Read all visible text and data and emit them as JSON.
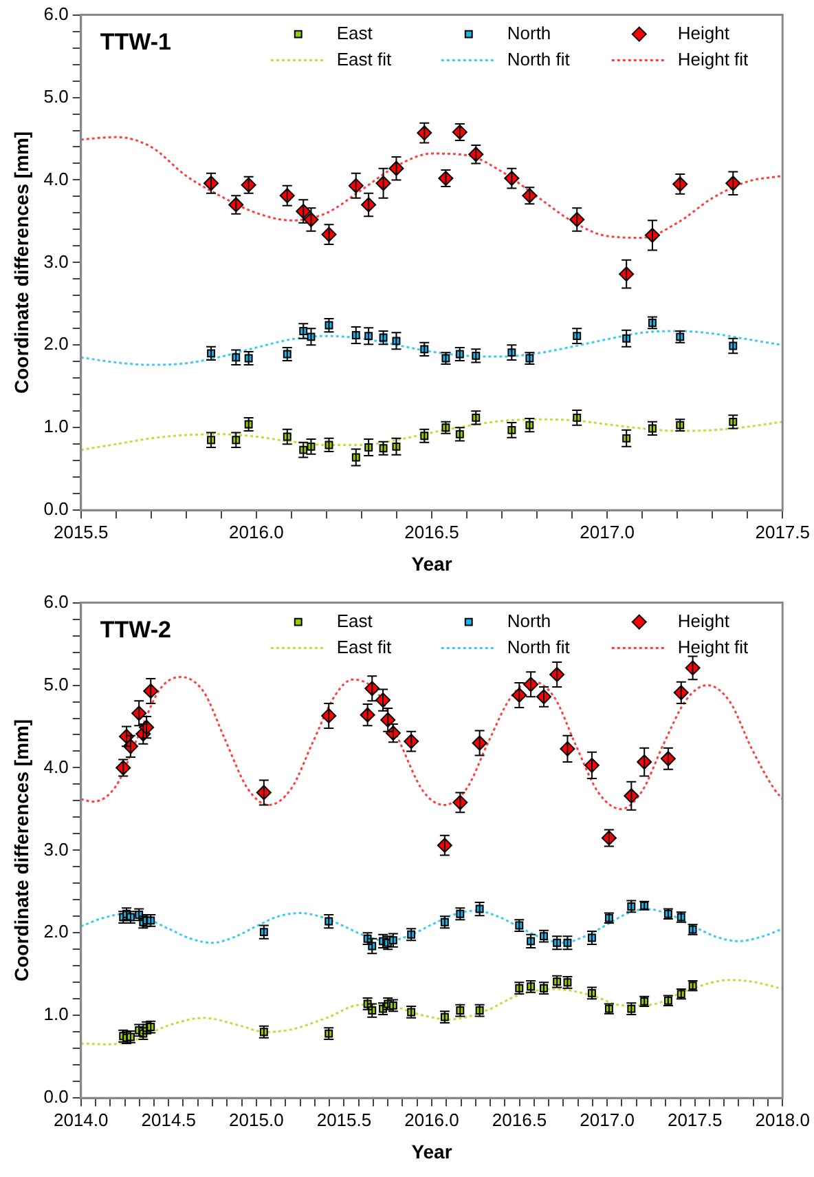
{
  "chart_data": [
    {
      "type": "scatter",
      "title": "TTW-1",
      "xlabel": "Year",
      "ylabel": "Coordinate differences [mm]",
      "grid": false,
      "legend": "top",
      "xlim": [
        2015.5,
        2017.5
      ],
      "xticks": [
        {
          "value": 2015.5,
          "label": "2015.5"
        },
        {
          "value": 2015.6,
          "label": null
        },
        {
          "value": 2015.7,
          "label": null
        },
        {
          "value": 2015.8,
          "label": null
        },
        {
          "value": 2015.9,
          "label": null
        },
        {
          "value": 2016.0,
          "label": "2016.0"
        },
        {
          "value": 2016.1,
          "label": null
        },
        {
          "value": 2016.2,
          "label": null
        },
        {
          "value": 2016.3,
          "label": null
        },
        {
          "value": 2016.4,
          "label": null
        },
        {
          "value": 2016.5,
          "label": "2016.5"
        },
        {
          "value": 2016.6,
          "label": null
        },
        {
          "value": 2016.7,
          "label": null
        },
        {
          "value": 2016.8,
          "label": null
        },
        {
          "value": 2016.9,
          "label": null
        },
        {
          "value": 2017.0,
          "label": "2017.0"
        },
        {
          "value": 2017.1,
          "label": null
        },
        {
          "value": 2017.2,
          "label": null
        },
        {
          "value": 2017.3,
          "label": null
        },
        {
          "value": 2017.4,
          "label": null
        },
        {
          "value": 2017.5,
          "label": "2017.5"
        }
      ],
      "ylim": [
        0,
        6
      ],
      "yticks": [
        {
          "value": 0,
          "label": "0.0"
        },
        {
          "value": 0.2,
          "label": null
        },
        {
          "value": 0.4,
          "label": null
        },
        {
          "value": 0.6,
          "label": null
        },
        {
          "value": 0.8,
          "label": null
        },
        {
          "value": 1,
          "label": "1.0"
        },
        {
          "value": 1.2,
          "label": null
        },
        {
          "value": 1.4,
          "label": null
        },
        {
          "value": 1.6,
          "label": null
        },
        {
          "value": 1.8,
          "label": null
        },
        {
          "value": 2,
          "label": "2.0"
        },
        {
          "value": 2.2,
          "label": null
        },
        {
          "value": 2.4,
          "label": null
        },
        {
          "value": 2.6,
          "label": null
        },
        {
          "value": 2.8,
          "label": null
        },
        {
          "value": 3,
          "label": "3.0"
        },
        {
          "value": 3.2,
          "label": null
        },
        {
          "value": 3.4,
          "label": null
        },
        {
          "value": 3.6,
          "label": null
        },
        {
          "value": 3.8,
          "label": null
        },
        {
          "value": 4,
          "label": "4.0"
        },
        {
          "value": 4.2,
          "label": null
        },
        {
          "value": 4.4,
          "label": null
        },
        {
          "value": 4.6,
          "label": null
        },
        {
          "value": 4.8,
          "label": null
        },
        {
          "value": 5,
          "label": "5.0"
        },
        {
          "value": 5.2,
          "label": null
        },
        {
          "value": 5.4,
          "label": null
        },
        {
          "value": 5.6,
          "label": null
        },
        {
          "value": 5.8,
          "label": null
        },
        {
          "value": 6,
          "label": "6.0"
        }
      ],
      "series": [
        {
          "name": "East",
          "type": "scatter",
          "marker": "square",
          "color": "#99cc00",
          "x": [
            2015.871,
            2015.942,
            2015.978,
            2016.088,
            2016.134,
            2016.156,
            2016.207,
            2016.284,
            2016.32,
            2016.362,
            2016.399,
            2016.479,
            2016.54,
            2016.58,
            2016.626,
            2016.728,
            2016.779,
            2016.914,
            2017.055,
            2017.129,
            2017.208,
            2017.359
          ],
          "values": [
            0.85,
            0.85,
            1.04,
            0.89,
            0.73,
            0.77,
            0.79,
            0.64,
            0.76,
            0.75,
            0.77,
            0.9,
            1.0,
            0.92,
            1.12,
            0.97,
            1.03,
            1.12,
            0.87,
            0.99,
            1.03,
            1.07
          ],
          "errors": [
            0.09,
            0.09,
            0.08,
            0.09,
            0.09,
            0.09,
            0.08,
            0.1,
            0.1,
            0.08,
            0.1,
            0.08,
            0.07,
            0.08,
            0.08,
            0.09,
            0.08,
            0.09,
            0.1,
            0.08,
            0.07,
            0.08
          ]
        },
        {
          "name": "North",
          "type": "scatter",
          "marker": "square",
          "color": "#1ab4e8",
          "x": [
            2015.871,
            2015.942,
            2015.978,
            2016.088,
            2016.134,
            2016.156,
            2016.207,
            2016.284,
            2016.32,
            2016.362,
            2016.399,
            2016.479,
            2016.54,
            2016.58,
            2016.626,
            2016.728,
            2016.779,
            2016.914,
            2017.055,
            2017.129,
            2017.208,
            2017.359
          ],
          "values": [
            1.9,
            1.85,
            1.84,
            1.89,
            2.17,
            2.1,
            2.24,
            2.12,
            2.11,
            2.09,
            2.05,
            1.95,
            1.84,
            1.89,
            1.87,
            1.91,
            1.84,
            2.11,
            2.08,
            2.27,
            2.1,
            1.99
          ],
          "errors": [
            0.08,
            0.09,
            0.08,
            0.08,
            0.09,
            0.1,
            0.08,
            0.1,
            0.1,
            0.08,
            0.1,
            0.08,
            0.07,
            0.08,
            0.08,
            0.09,
            0.07,
            0.09,
            0.1,
            0.07,
            0.07,
            0.09
          ]
        },
        {
          "name": "Height",
          "type": "scatter",
          "marker": "diamond",
          "color": "#ff0000",
          "x": [
            2015.871,
            2015.942,
            2015.978,
            2016.088,
            2016.134,
            2016.156,
            2016.207,
            2016.284,
            2016.32,
            2016.362,
            2016.399,
            2016.479,
            2016.54,
            2016.58,
            2016.626,
            2016.728,
            2016.779,
            2016.914,
            2017.055,
            2017.129,
            2017.208,
            2017.359
          ],
          "values": [
            3.96,
            3.7,
            3.94,
            3.81,
            3.62,
            3.52,
            3.34,
            3.93,
            3.7,
            3.96,
            4.14,
            4.57,
            4.02,
            4.58,
            4.31,
            4.02,
            3.81,
            3.52,
            2.86,
            3.33,
            3.95,
            3.96
          ],
          "errors": [
            0.12,
            0.11,
            0.1,
            0.12,
            0.14,
            0.14,
            0.12,
            0.15,
            0.14,
            0.18,
            0.14,
            0.12,
            0.1,
            0.1,
            0.11,
            0.12,
            0.1,
            0.14,
            0.17,
            0.18,
            0.12,
            0.14
          ]
        },
        {
          "name": "East fit",
          "type": "line",
          "marker": "none",
          "line_style": "dotted",
          "color": "#c4dc3c",
          "x": [
            2015.5,
            2015.6,
            2015.7,
            2015.8,
            2015.9,
            2016.0,
            2016.1,
            2016.2,
            2016.3,
            2016.4,
            2016.5,
            2016.6,
            2016.7,
            2016.8,
            2016.9,
            2017.0,
            2017.1,
            2017.2,
            2017.3,
            2017.4,
            2017.5
          ],
          "values": [
            0.73,
            0.8,
            0.87,
            0.91,
            0.92,
            0.89,
            0.83,
            0.79,
            0.79,
            0.85,
            0.94,
            1.02,
            1.08,
            1.1,
            1.09,
            1.04,
            0.99,
            0.96,
            0.97,
            1.01,
            1.07
          ]
        },
        {
          "name": "North fit",
          "type": "line",
          "marker": "none",
          "line_style": "dotted",
          "color": "#3cccf0",
          "x": [
            2015.5,
            2015.6,
            2015.7,
            2015.8,
            2015.9,
            2016.0,
            2016.1,
            2016.2,
            2016.3,
            2016.4,
            2016.5,
            2016.6,
            2016.7,
            2016.8,
            2016.9,
            2017.0,
            2017.1,
            2017.2,
            2017.3,
            2017.4,
            2017.5
          ],
          "values": [
            1.85,
            1.79,
            1.76,
            1.78,
            1.86,
            1.97,
            2.07,
            2.11,
            2.08,
            2.0,
            1.92,
            1.87,
            1.86,
            1.9,
            1.98,
            2.07,
            2.15,
            2.17,
            2.14,
            2.07,
            2.0
          ]
        },
        {
          "name": "Height fit",
          "type": "line",
          "marker": "none",
          "line_style": "dotted",
          "color": "#ff4040",
          "x": [
            2015.5,
            2015.6,
            2015.7,
            2015.8,
            2015.9,
            2016.0,
            2016.1,
            2016.2,
            2016.3,
            2016.4,
            2016.5,
            2016.6,
            2016.7,
            2016.8,
            2016.9,
            2017.0,
            2017.1,
            2017.2,
            2017.3,
            2017.4,
            2017.5
          ],
          "values": [
            4.49,
            4.52,
            4.4,
            4.05,
            3.8,
            3.6,
            3.51,
            3.6,
            3.88,
            4.17,
            4.32,
            4.3,
            4.1,
            3.8,
            3.5,
            3.32,
            3.3,
            3.48,
            3.78,
            3.98,
            4.05
          ]
        }
      ]
    },
    {
      "type": "scatter",
      "title": "TTW-2",
      "xlabel": "Year",
      "ylabel": "Coordinate differences [mm]",
      "grid": false,
      "legend": "top",
      "xlim": [
        2014.0,
        2018.0
      ],
      "xticks": [
        {
          "value": 2014.0,
          "label": "2014.0"
        },
        {
          "value": 2014.083,
          "label": null
        },
        {
          "value": 2014.167,
          "label": null
        },
        {
          "value": 2014.25,
          "label": null
        },
        {
          "value": 2014.333,
          "label": null
        },
        {
          "value": 2014.417,
          "label": null
        },
        {
          "value": 2014.5,
          "label": "2014.5"
        },
        {
          "value": 2014.583,
          "label": null
        },
        {
          "value": 2014.667,
          "label": null
        },
        {
          "value": 2014.75,
          "label": null
        },
        {
          "value": 2014.833,
          "label": null
        },
        {
          "value": 2014.917,
          "label": null
        },
        {
          "value": 2015.0,
          "label": "2015.0"
        },
        {
          "value": 2015.083,
          "label": null
        },
        {
          "value": 2015.167,
          "label": null
        },
        {
          "value": 2015.25,
          "label": null
        },
        {
          "value": 2015.333,
          "label": null
        },
        {
          "value": 2015.417,
          "label": null
        },
        {
          "value": 2015.5,
          "label": "2015.5"
        },
        {
          "value": 2015.583,
          "label": null
        },
        {
          "value": 2015.667,
          "label": null
        },
        {
          "value": 2015.75,
          "label": null
        },
        {
          "value": 2015.833,
          "label": null
        },
        {
          "value": 2015.917,
          "label": null
        },
        {
          "value": 2016.0,
          "label": "2016.0"
        },
        {
          "value": 2016.083,
          "label": null
        },
        {
          "value": 2016.167,
          "label": null
        },
        {
          "value": 2016.25,
          "label": null
        },
        {
          "value": 2016.333,
          "label": null
        },
        {
          "value": 2016.417,
          "label": null
        },
        {
          "value": 2016.5,
          "label": "2016.5"
        },
        {
          "value": 2016.583,
          "label": null
        },
        {
          "value": 2016.667,
          "label": null
        },
        {
          "value": 2016.75,
          "label": null
        },
        {
          "value": 2016.833,
          "label": null
        },
        {
          "value": 2016.917,
          "label": null
        },
        {
          "value": 2017.0,
          "label": "2017.0"
        },
        {
          "value": 2017.083,
          "label": null
        },
        {
          "value": 2017.167,
          "label": null
        },
        {
          "value": 2017.25,
          "label": null
        },
        {
          "value": 2017.333,
          "label": null
        },
        {
          "value": 2017.417,
          "label": null
        },
        {
          "value": 2017.5,
          "label": "2017.5"
        },
        {
          "value": 2017.583,
          "label": null
        },
        {
          "value": 2017.667,
          "label": null
        },
        {
          "value": 2017.75,
          "label": null
        },
        {
          "value": 2017.833,
          "label": null
        },
        {
          "value": 2017.917,
          "label": null
        },
        {
          "value": 2018.0,
          "label": "2018.0"
        }
      ],
      "ylim": [
        0,
        6
      ],
      "yticks": [
        {
          "value": 0,
          "label": "0.0"
        },
        {
          "value": 0.2,
          "label": null
        },
        {
          "value": 0.4,
          "label": null
        },
        {
          "value": 0.6,
          "label": null
        },
        {
          "value": 0.8,
          "label": null
        },
        {
          "value": 1,
          "label": "1.0"
        },
        {
          "value": 1.2,
          "label": null
        },
        {
          "value": 1.4,
          "label": null
        },
        {
          "value": 1.6,
          "label": null
        },
        {
          "value": 1.8,
          "label": null
        },
        {
          "value": 2,
          "label": "2.0"
        },
        {
          "value": 2.2,
          "label": null
        },
        {
          "value": 2.4,
          "label": null
        },
        {
          "value": 2.6,
          "label": null
        },
        {
          "value": 2.8,
          "label": null
        },
        {
          "value": 3,
          "label": "3.0"
        },
        {
          "value": 3.2,
          "label": null
        },
        {
          "value": 3.4,
          "label": null
        },
        {
          "value": 3.6,
          "label": null
        },
        {
          "value": 3.8,
          "label": null
        },
        {
          "value": 4,
          "label": "4.0"
        },
        {
          "value": 4.2,
          "label": null
        },
        {
          "value": 4.4,
          "label": null
        },
        {
          "value": 4.6,
          "label": null
        },
        {
          "value": 4.8,
          "label": null
        },
        {
          "value": 5,
          "label": "5.0"
        },
        {
          "value": 5.2,
          "label": null
        },
        {
          "value": 5.4,
          "label": null
        },
        {
          "value": 5.6,
          "label": null
        },
        {
          "value": 5.8,
          "label": null
        },
        {
          "value": 6,
          "label": "6.0"
        }
      ],
      "series": [
        {
          "name": "East",
          "type": "scatter",
          "marker": "square",
          "color": "#99cc00",
          "x": [
            2014.241,
            2014.26,
            2014.283,
            2014.331,
            2014.355,
            2014.374,
            2014.398,
            2015.043,
            2015.413,
            2015.634,
            2015.66,
            2015.722,
            2015.75,
            2015.78,
            2015.883,
            2016.074,
            2016.162,
            2016.273,
            2016.499,
            2016.565,
            2016.639,
            2016.714,
            2016.774,
            2016.913,
            2017.011,
            2017.138,
            2017.212,
            2017.348,
            2017.422,
            2017.488
          ],
          "values": [
            0.75,
            0.73,
            0.74,
            0.82,
            0.78,
            0.85,
            0.86,
            0.8,
            0.78,
            1.14,
            1.06,
            1.08,
            1.14,
            1.12,
            1.04,
            0.98,
            1.06,
            1.06,
            1.33,
            1.35,
            1.33,
            1.41,
            1.4,
            1.27,
            1.08,
            1.08,
            1.17,
            1.18,
            1.26,
            1.36
          ],
          "errors": [
            0.07,
            0.07,
            0.07,
            0.07,
            0.07,
            0.07,
            0.07,
            0.07,
            0.07,
            0.07,
            0.08,
            0.07,
            0.07,
            0.07,
            0.07,
            0.07,
            0.07,
            0.07,
            0.07,
            0.07,
            0.07,
            0.07,
            0.07,
            0.07,
            0.06,
            0.07,
            0.06,
            0.06,
            0.06,
            0.06
          ]
        },
        {
          "name": "North",
          "type": "scatter",
          "marker": "square",
          "color": "#1ab4e8",
          "x": [
            2014.241,
            2014.26,
            2014.283,
            2014.331,
            2014.355,
            2014.374,
            2014.398,
            2015.043,
            2015.413,
            2015.634,
            2015.66,
            2015.722,
            2015.75,
            2015.78,
            2015.883,
            2016.074,
            2016.162,
            2016.273,
            2016.499,
            2016.565,
            2016.639,
            2016.714,
            2016.774,
            2016.913,
            2017.011,
            2017.138,
            2017.212,
            2017.348,
            2017.422,
            2017.488
          ],
          "values": [
            2.19,
            2.23,
            2.19,
            2.22,
            2.13,
            2.15,
            2.15,
            2.01,
            2.14,
            1.93,
            1.84,
            1.9,
            1.88,
            1.91,
            1.98,
            2.13,
            2.23,
            2.29,
            2.09,
            1.9,
            1.96,
            1.88,
            1.88,
            1.94,
            2.18,
            2.32,
            2.33,
            2.23,
            2.19,
            2.04
          ],
          "errors": [
            0.07,
            0.07,
            0.07,
            0.07,
            0.07,
            0.07,
            0.07,
            0.08,
            0.08,
            0.07,
            0.09,
            0.08,
            0.08,
            0.08,
            0.07,
            0.07,
            0.07,
            0.08,
            0.07,
            0.08,
            0.07,
            0.08,
            0.08,
            0.08,
            0.06,
            0.07,
            0.05,
            0.06,
            0.06,
            0.06
          ]
        },
        {
          "name": "Height",
          "type": "scatter",
          "marker": "diamond",
          "color": "#ff0000",
          "x": [
            2014.241,
            2014.26,
            2014.283,
            2014.331,
            2014.355,
            2014.374,
            2014.398,
            2015.043,
            2015.413,
            2015.634,
            2015.66,
            2015.722,
            2015.75,
            2015.78,
            2015.883,
            2016.074,
            2016.162,
            2016.273,
            2016.499,
            2016.565,
            2016.639,
            2016.714,
            2016.774,
            2016.913,
            2017.011,
            2017.138,
            2017.212,
            2017.348,
            2017.422,
            2017.488
          ],
          "values": [
            4.0,
            4.38,
            4.26,
            4.66,
            4.41,
            4.49,
            4.93,
            3.7,
            4.63,
            4.64,
            4.96,
            4.82,
            4.58,
            4.42,
            4.32,
            3.06,
            3.58,
            4.3,
            4.88,
            5.01,
            4.86,
            5.13,
            4.23,
            4.03,
            3.15,
            3.66,
            4.07,
            4.11,
            4.91,
            5.21
          ],
          "errors": [
            0.1,
            0.12,
            0.13,
            0.15,
            0.12,
            0.13,
            0.15,
            0.15,
            0.15,
            0.13,
            0.15,
            0.13,
            0.14,
            0.11,
            0.12,
            0.12,
            0.12,
            0.15,
            0.15,
            0.15,
            0.12,
            0.15,
            0.16,
            0.16,
            0.1,
            0.17,
            0.17,
            0.13,
            0.13,
            0.14
          ]
        },
        {
          "name": "East fit",
          "type": "line",
          "marker": "none",
          "line_style": "dotted",
          "color": "#c4dc3c",
          "x": [
            2014.0,
            2014.15,
            2014.3,
            2014.5,
            2014.7,
            2014.9,
            2015.05,
            2015.2,
            2015.4,
            2015.6,
            2015.75,
            2015.95,
            2016.1,
            2016.3,
            2016.5,
            2016.7,
            2016.9,
            2017.1,
            2017.25,
            2017.45,
            2017.7,
            2017.85,
            2018.0
          ],
          "values": [
            0.66,
            0.65,
            0.7,
            0.88,
            0.97,
            0.88,
            0.8,
            0.83,
            0.97,
            1.13,
            1.12,
            1.0,
            0.95,
            1.05,
            1.25,
            1.32,
            1.25,
            1.12,
            1.13,
            1.3,
            1.43,
            1.4,
            1.32
          ]
        },
        {
          "name": "North fit",
          "type": "line",
          "marker": "none",
          "line_style": "dotted",
          "color": "#3cccf0",
          "x": [
            2014.0,
            2014.125,
            2014.25,
            2014.375,
            2014.5,
            2014.625,
            2014.75,
            2014.875,
            2015.0,
            2015.125,
            2015.25,
            2015.375,
            2015.5,
            2015.625,
            2015.75,
            2015.875,
            2016.0,
            2016.125,
            2016.25,
            2016.375,
            2016.5,
            2016.625,
            2016.75,
            2016.875,
            2017.0,
            2017.11,
            2017.22,
            2017.36,
            2017.5,
            2017.625,
            2017.75,
            2017.875,
            2018.0
          ],
          "values": [
            2.08,
            2.18,
            2.23,
            2.17,
            2.05,
            1.93,
            1.88,
            1.95,
            2.08,
            2.2,
            2.24,
            2.19,
            2.08,
            1.96,
            1.9,
            1.97,
            2.1,
            2.22,
            2.27,
            2.2,
            2.07,
            1.94,
            1.88,
            1.96,
            2.1,
            2.23,
            2.29,
            2.22,
            2.07,
            1.95,
            1.9,
            1.95,
            2.05
          ]
        },
        {
          "name": "Height fit",
          "type": "line",
          "marker": "none",
          "line_style": "dotted",
          "color": "#ff4040",
          "x": [
            2014.0,
            2014.07,
            2014.2,
            2014.32,
            2014.45,
            2014.57,
            2014.7,
            2014.82,
            2014.95,
            2015.07,
            2015.2,
            2015.32,
            2015.45,
            2015.55,
            2015.7,
            2015.82,
            2015.95,
            2016.07,
            2016.2,
            2016.32,
            2016.45,
            2016.57,
            2016.7,
            2016.82,
            2016.95,
            2017.08,
            2017.2,
            2017.32,
            2017.45,
            2017.57,
            2017.7,
            2017.82,
            2017.95,
            2018.0
          ],
          "values": [
            3.62,
            3.59,
            3.78,
            4.35,
            4.95,
            5.1,
            4.92,
            4.35,
            3.75,
            3.55,
            3.75,
            4.3,
            4.88,
            5.07,
            4.88,
            4.3,
            3.72,
            3.55,
            3.75,
            4.3,
            4.85,
            5.05,
            4.85,
            4.28,
            3.7,
            3.5,
            3.72,
            4.28,
            4.82,
            5.0,
            4.8,
            4.25,
            3.75,
            3.62
          ]
        }
      ]
    }
  ]
}
